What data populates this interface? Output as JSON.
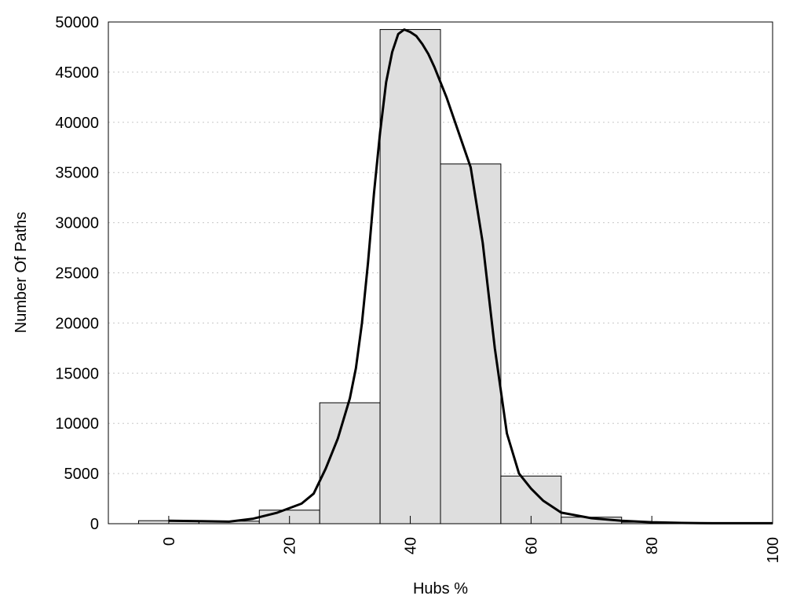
{
  "chart_data": {
    "type": "bar",
    "xlabel": "Hubs %",
    "ylabel": "Number Of Paths",
    "xlim": [
      -10,
      100
    ],
    "ylim": [
      0,
      50000
    ],
    "grid": "horizontal-dotted",
    "bar_color": "#dedede",
    "curve_color": "#000000",
    "x_ticks": [
      0,
      20,
      40,
      60,
      80,
      100
    ],
    "y_ticks": [
      0,
      5000,
      10000,
      15000,
      20000,
      25000,
      30000,
      35000,
      40000,
      45000,
      50000
    ],
    "bins": [
      {
        "x0": -5,
        "x1": 5,
        "value": 300
      },
      {
        "x0": 5,
        "x1": 15,
        "value": 250
      },
      {
        "x0": 15,
        "x1": 25,
        "value": 1350
      },
      {
        "x0": 25,
        "x1": 35,
        "value": 12050
      },
      {
        "x0": 35,
        "x1": 45,
        "value": 49250
      },
      {
        "x0": 45,
        "x1": 55,
        "value": 35850
      },
      {
        "x0": 55,
        "x1": 65,
        "value": 4750
      },
      {
        "x0": 65,
        "x1": 75,
        "value": 650
      },
      {
        "x0": 75,
        "x1": 85,
        "value": 150
      },
      {
        "x0": 85,
        "x1": 95,
        "value": 50
      },
      {
        "x0": 95,
        "x1": 100,
        "value": 50
      }
    ],
    "density_curve": {
      "x": [
        0,
        5,
        10,
        14,
        18,
        22,
        24,
        26,
        28,
        30,
        31,
        32,
        33,
        34,
        35,
        36,
        37,
        38,
        39,
        40,
        41,
        42,
        43,
        44,
        45,
        46,
        48,
        50,
        52,
        54,
        56,
        58,
        60,
        62,
        65,
        70,
        75,
        80,
        85,
        90,
        95,
        100
      ],
      "y": [
        300,
        250,
        200,
        500,
        1100,
        2000,
        3000,
        5500,
        8500,
        12500,
        15500,
        20000,
        26000,
        33000,
        39000,
        44000,
        47000,
        48800,
        49250,
        49000,
        48600,
        47800,
        46800,
        45500,
        44000,
        42500,
        39000,
        35500,
        28000,
        17500,
        9000,
        5000,
        3500,
        2300,
        1100,
        550,
        300,
        150,
        80,
        50,
        50,
        50
      ]
    }
  }
}
